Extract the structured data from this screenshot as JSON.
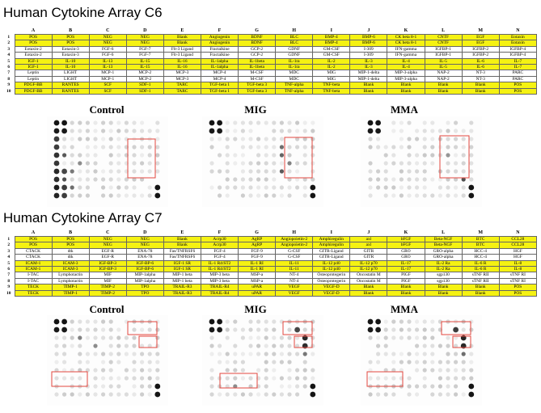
{
  "columns": [
    "A",
    "B",
    "C",
    "D",
    "E",
    "F",
    "G",
    "H",
    "I",
    "J",
    "K",
    "L",
    "M",
    "N"
  ],
  "c6": {
    "title": "Human Cytokine Array C6",
    "rows": [
      {
        "n": "1",
        "cells": [
          "POS",
          "POS",
          "NEG",
          "NEG",
          "Blank",
          "Angiogenin",
          "BDNF",
          "BLC",
          "BMP-4",
          "BMP-6",
          "CK beta 8-1",
          "CNTF",
          "EGF",
          "Eotaxin"
        ]
      },
      {
        "n": "2",
        "cells": [
          "POS",
          "POS",
          "NEG",
          "NEG",
          "Blank",
          "Angiogenin",
          "BDNF",
          "BLC",
          "BMP-4",
          "BMP-6",
          "CK beta 8-1",
          "CNTF",
          "EGF",
          "Eotaxin"
        ]
      },
      {
        "n": "3",
        "cells": [
          "Eotaxin-2",
          "Eotaxin-3",
          "FGF-6",
          "FGF-7",
          "Flt-3 Ligand",
          "Fractalkine",
          "GCP-2",
          "GDNF",
          "GM-CSF",
          "I-309",
          "IFN-gamma",
          "IGFBP-1",
          "IGFBP-2",
          "IGFBP-4"
        ]
      },
      {
        "n": "4",
        "cells": [
          "Eotaxin-2",
          "Eotaxin-3",
          "FGF-6",
          "FGF-7",
          "Flt-3 Ligand",
          "Fractalkine",
          "GCP-2",
          "GDNF",
          "GM-CSF",
          "I-309",
          "IFN-gamma",
          "IGFBP-1",
          "IGFBP-2",
          "IGFBP-4"
        ]
      },
      {
        "n": "5",
        "cells": [
          "IGF-1",
          "IL-10",
          "IL-13",
          "IL-15",
          "IL-16",
          "IL-1alpha",
          "IL-1beta",
          "IL-1ra",
          "IL-2",
          "IL-3",
          "IL-4",
          "IL-5",
          "IL-6",
          "IL-7"
        ]
      },
      {
        "n": "6",
        "cells": [
          "IGF-1",
          "IL-10",
          "IL-13",
          "IL-15",
          "IL-16",
          "IL-1alpha",
          "IL-1beta",
          "IL-1ra",
          "IL-2",
          "IL-3",
          "IL-4",
          "IL-5",
          "IL-6",
          "IL-7"
        ]
      },
      {
        "n": "7",
        "cells": [
          "Leptin",
          "LIGHT",
          "MCP-1",
          "MCP-2",
          "MCP-3",
          "MCP-4",
          "M-CSF",
          "MDC",
          "MIG",
          "MIP-1-delta",
          "MIP-3-alpha",
          "NAP-2",
          "NT-3",
          "PARC"
        ]
      },
      {
        "n": "8",
        "cells": [
          "Leptin",
          "LIGHT",
          "MCP-1",
          "MCP-2",
          "MCP-3",
          "MCP-4",
          "M-CSF",
          "MDC",
          "MIG",
          "MIP-1-delta",
          "MIP-3-alpha",
          "NAP-2",
          "NT-3",
          "PARC"
        ]
      },
      {
        "n": "9",
        "cells": [
          "PDGF-BB",
          "RANTES",
          "SCF",
          "SDF-1",
          "TARC",
          "TGF-beta 1",
          "TGF-beta 3",
          "TNF-alpha",
          "TNF-beta",
          "Blank",
          "Blank",
          "Blank",
          "Blank",
          "POS"
        ]
      },
      {
        "n": "10",
        "cells": [
          "PDGF-BB",
          "RANTES",
          "SCF",
          "SDF-1",
          "TARC",
          "TGF-beta 1",
          "TGF-beta 3",
          "TNF-alpha",
          "TNF-beta",
          "Blank",
          "Blank",
          "Blank",
          "Blank",
          "POS"
        ]
      }
    ],
    "panels": [
      "Control",
      "MIG",
      "MMA"
    ]
  },
  "c7": {
    "title": "Human Cytokine Array C7",
    "rows": [
      {
        "n": "1",
        "cells": [
          "POS",
          "POS",
          "NEG",
          "NEG",
          "Blank",
          "Acrp30",
          "AgRP",
          "Angiopoietin-2",
          "Amphiregulin",
          "axl",
          "bFGF",
          "Beta-NGF",
          "BTC",
          "CCL28"
        ]
      },
      {
        "n": "2",
        "cells": [
          "POS",
          "POS",
          "NEG",
          "NEG",
          "Blank",
          "Acrp30",
          "AgRP",
          "Angiopoietin-2",
          "Amphiregulin",
          "axl",
          "bFGF",
          "Beta-NGF",
          "BTC",
          "CCL28"
        ]
      },
      {
        "n": "3",
        "cells": [
          "CTACK",
          "dtk",
          "EGF-R",
          "ENA-78",
          "Fas/TNFRSF6",
          "FGF-4",
          "FGF-9",
          "G-CSF",
          "GITR-Ligand",
          "GITR",
          "GRO",
          "GRO-alpha",
          "HCC-4",
          "HGF"
        ]
      },
      {
        "n": "4",
        "cells": [
          "CTACK",
          "dtk",
          "EGF-R",
          "ENA-78",
          "Fas/TNFRSF6",
          "FGF-4",
          "FGF-9",
          "G-CSF",
          "GITR-Ligand",
          "GITR",
          "GRO",
          "GRO-alpha",
          "HCC-4",
          "HGF"
        ]
      },
      {
        "n": "5",
        "cells": [
          "ICAM-1",
          "ICAM-3",
          "IGF-BP-3",
          "IGF-BP-6",
          "IGF-1 SR",
          "IL-1 R4/ST2",
          "IL-1 RI",
          "IL-11",
          "IL-12 p40",
          "IL-12 p70",
          "IL-17",
          "IL-2 Ra",
          "IL-6 R",
          "IL-8"
        ]
      },
      {
        "n": "6",
        "cells": [
          "ICAM-1",
          "ICAM-3",
          "IGF-BP-3",
          "IGF-BP-6",
          "IGF-1 SR",
          "IL-1 R4/ST2",
          "IL-1 RI",
          "IL-11",
          "IL-12 p40",
          "IL-12 p70",
          "IL-17",
          "IL-2 Ra",
          "IL-6 R",
          "IL-8"
        ]
      },
      {
        "n": "7",
        "cells": [
          "I-TAC",
          "Lymphotactin",
          "MIF",
          "MIP-1alpha",
          "MIP-1 beta",
          "MIP-3 beta",
          "MSP-a",
          "NT-4",
          "Osteoprotegerin",
          "Oncostatin M",
          "PIGF",
          "sgp130",
          "sTNF RII",
          "sTNF RI"
        ]
      },
      {
        "n": "8",
        "cells": [
          "I-TAC",
          "Lymphotactin",
          "MIF",
          "MIP-1alpha",
          "MIP-1 beta",
          "MIP-3 beta",
          "MSP-a",
          "NT-4",
          "Osteoprotegerin",
          "Oncostatin M",
          "PIGF",
          "sgp130",
          "sTNF RII",
          "sTNF RI"
        ]
      },
      {
        "n": "9",
        "cells": [
          "TECK",
          "TIMP-1",
          "TIMP-2",
          "TPO",
          "TRAIL-R3",
          "TRAIL-R4",
          "uPAR",
          "VEGF",
          "VEGF-D",
          "Blank",
          "Blank",
          "Blank",
          "Blank",
          "POS"
        ]
      },
      {
        "n": "10",
        "cells": [
          "TECK",
          "TIMP-1",
          "TIMP-2",
          "TPO",
          "TRAIL-R3",
          "TRAIL-R4",
          "uPAR",
          "VEGF",
          "VEGF-D",
          "Blank",
          "Blank",
          "Blank",
          "Blank",
          "POS"
        ]
      }
    ],
    "panels": [
      "Control",
      "MIG",
      "MMA"
    ]
  }
}
